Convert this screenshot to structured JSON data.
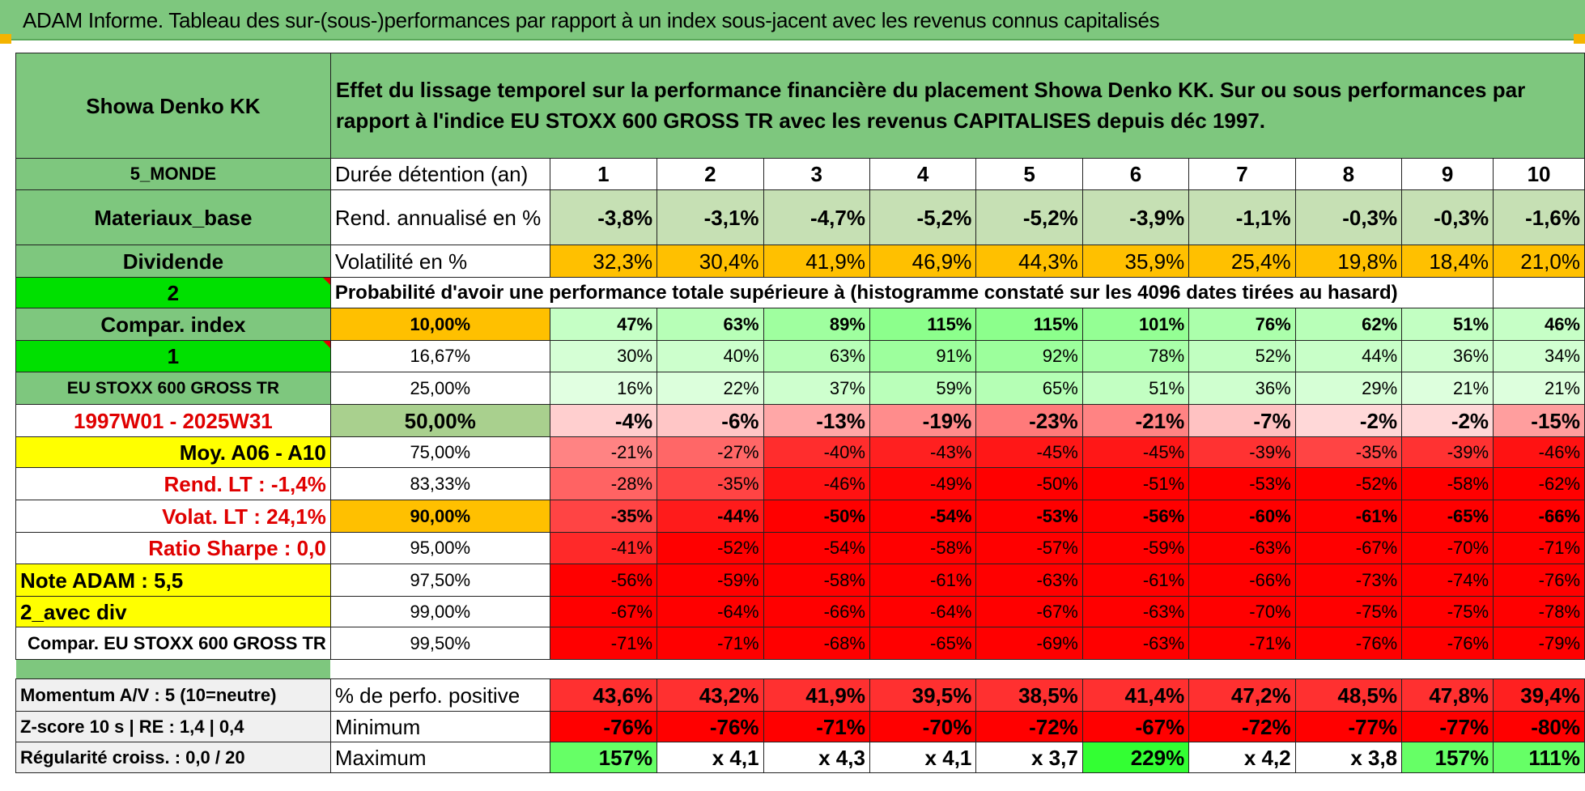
{
  "title": "ADAM Informe. Tableau des sur-(sous-)performances par rapport à un index sous-jacent avec les revenus connus capitalisés",
  "header": {
    "company": "Showa Denko KK",
    "description": "Effet du lissage temporel sur la performance financière du placement Showa Denko KK. Sur ou sous performances par rapport à l'indice EU STOXX 600 GROSS TR avec les revenus CAPITALISES depuis déc 1997."
  },
  "sidebar": {
    "region": "5_MONDE",
    "sector": "Materiaux_base",
    "dividend_label": "Dividende",
    "value_2": "2",
    "compar_index": "Compar. index",
    "value_1": "1",
    "index_name": "EU STOXX 600 GROSS TR",
    "period": "1997W01 - 2025W31",
    "moy": "Moy. A06 - A10",
    "rend_lt": "Rend. LT :    -1,4%",
    "volat_lt": "Volat. LT :    24,1%",
    "sharpe": "Ratio Sharpe :     0,0",
    "note": "Note ADAM : 5,5",
    "avec_div": "2_avec div",
    "compar": "Compar. EU STOXX 600 GROSS TR",
    "momentum": "Momentum A/V : 5 (10=neutre)",
    "zscore": "Z-score 10 s | RE : 1,4 | 0,4",
    "regularite": "Régularité croiss. : 0,0 / 20"
  },
  "labels": {
    "duration": "Durée détention (an)",
    "rend": "Rend. annualisé en %",
    "vol": "Volatilité en %",
    "prob": "Probabilité d'avoir une performance totale supérieure à (histogramme constaté sur les 4096 dates tirées au hasard)",
    "pos": "% de perfo. positive",
    "min": "Minimum",
    "max": "Maximum"
  },
  "years": [
    "1",
    "2",
    "3",
    "4",
    "5",
    "6",
    "7",
    "8",
    "9",
    "10"
  ],
  "rend": [
    "-3,8%",
    "-3,1%",
    "-4,7%",
    "-5,2%",
    "-5,2%",
    "-3,9%",
    "-1,1%",
    "-0,3%",
    "-0,3%",
    "-1,6%"
  ],
  "vol": [
    "32,3%",
    "30,4%",
    "41,9%",
    "46,9%",
    "44,3%",
    "35,9%",
    "25,4%",
    "19,8%",
    "18,4%",
    "21,0%"
  ],
  "quantiles": [
    {
      "p": "10,00%",
      "vals": [
        "47%",
        "63%",
        "89%",
        "115%",
        "115%",
        "101%",
        "76%",
        "62%",
        "51%",
        "46%"
      ]
    },
    {
      "p": "16,67%",
      "vals": [
        "30%",
        "40%",
        "63%",
        "91%",
        "92%",
        "78%",
        "52%",
        "44%",
        "36%",
        "34%"
      ]
    },
    {
      "p": "25,00%",
      "vals": [
        "16%",
        "22%",
        "37%",
        "59%",
        "65%",
        "51%",
        "36%",
        "29%",
        "21%",
        "21%"
      ]
    },
    {
      "p": "50,00%",
      "vals": [
        "-4%",
        "-6%",
        "-13%",
        "-19%",
        "-23%",
        "-21%",
        "-7%",
        "-2%",
        "-2%",
        "-15%"
      ]
    },
    {
      "p": "75,00%",
      "vals": [
        "-21%",
        "-27%",
        "-40%",
        "-43%",
        "-45%",
        "-45%",
        "-39%",
        "-35%",
        "-39%",
        "-46%"
      ]
    },
    {
      "p": "83,33%",
      "vals": [
        "-28%",
        "-35%",
        "-46%",
        "-49%",
        "-50%",
        "-51%",
        "-53%",
        "-52%",
        "-58%",
        "-62%"
      ]
    },
    {
      "p": "90,00%",
      "vals": [
        "-35%",
        "-44%",
        "-50%",
        "-54%",
        "-53%",
        "-56%",
        "-60%",
        "-61%",
        "-65%",
        "-66%"
      ]
    },
    {
      "p": "95,00%",
      "vals": [
        "-41%",
        "-52%",
        "-54%",
        "-58%",
        "-57%",
        "-59%",
        "-63%",
        "-67%",
        "-70%",
        "-71%"
      ]
    },
    {
      "p": "97,50%",
      "vals": [
        "-56%",
        "-59%",
        "-58%",
        "-61%",
        "-63%",
        "-61%",
        "-66%",
        "-73%",
        "-74%",
        "-76%"
      ]
    },
    {
      "p": "99,00%",
      "vals": [
        "-67%",
        "-64%",
        "-66%",
        "-64%",
        "-67%",
        "-63%",
        "-70%",
        "-75%",
        "-75%",
        "-78%"
      ]
    },
    {
      "p": "99,50%",
      "vals": [
        "-71%",
        "-71%",
        "-68%",
        "-65%",
        "-69%",
        "-63%",
        "-71%",
        "-76%",
        "-76%",
        "-79%"
      ]
    }
  ],
  "pos": [
    "43,6%",
    "43,2%",
    "41,9%",
    "39,5%",
    "38,5%",
    "41,4%",
    "47,2%",
    "48,5%",
    "47,8%",
    "39,4%"
  ],
  "min": [
    "-76%",
    "-76%",
    "-71%",
    "-70%",
    "-72%",
    "-67%",
    "-72%",
    "-77%",
    "-77%",
    "-80%"
  ],
  "max": [
    "157%",
    "x 4,1",
    "x 4,3",
    "x 4,1",
    "x 3,7",
    "229%",
    "x 4,2",
    "x 3,8",
    "157%",
    "111%"
  ],
  "colors": {
    "header_green": "#7ec77e",
    "rend_bg": "#c6e0b4",
    "vol_bg": "#ffc000",
    "pos_bg": "#ff0000",
    "max_green": "#5cff5c"
  }
}
